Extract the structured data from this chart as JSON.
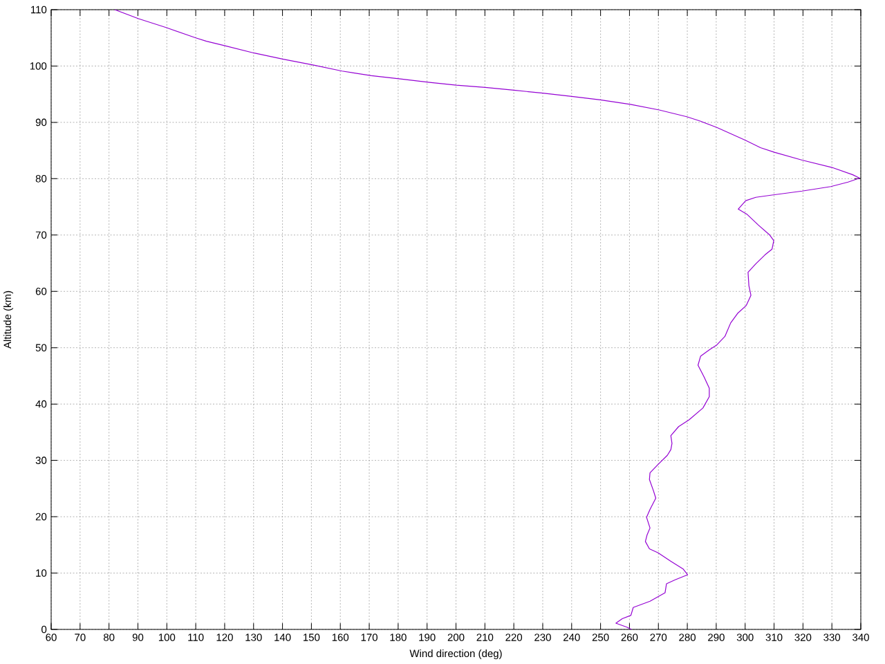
{
  "chart_data": {
    "type": "line",
    "xlabel": "Wind direction (deg)",
    "ylabel": "Altitude (km)",
    "color": "#9400d3",
    "x": [
      260.7,
      259.1,
      255.3,
      257.5,
      260.5,
      261.3,
      267.1,
      272.3,
      272.8,
      275.8,
      280.1,
      278.6,
      274.3,
      269.9,
      266.9,
      265.5,
      266.1,
      267.1,
      265.9,
      267.1,
      269.1,
      268.3,
      266.9,
      267.1,
      269.9,
      273.1,
      274.3,
      274.7,
      274.3,
      277.0,
      280.6,
      285.4,
      287.6,
      287.6,
      285.8,
      283.7,
      284.6,
      287.8,
      290.2,
      293.0,
      295.0,
      297.4,
      300.4,
      302.0,
      301.3,
      301.0,
      303.7,
      306.9,
      309.3,
      309.9,
      308.5,
      304.5,
      300.6,
      297.6,
      300.2,
      303.7,
      309.3,
      319.7,
      329.6,
      335.6,
      339.6,
      337.2,
      330.0,
      319.7,
      310.1,
      305.3,
      300.2,
      290.2,
      284.6,
      279.8,
      270.3,
      260.3,
      249.9,
      240.0,
      230.0,
      220.0,
      210.1,
      200.1,
      190.9,
      180.8,
      170.7,
      160.6,
      150.5,
      140.3,
      130.2,
      120.1,
      113.7,
      110.0,
      99.9,
      90.2,
      82.0
    ],
    "values": [
      0.0,
      0.4,
      1.1,
      1.9,
      2.5,
      3.9,
      5.0,
      6.5,
      8.1,
      8.8,
      9.7,
      10.7,
      12.1,
      13.6,
      14.3,
      15.6,
      16.8,
      18.0,
      19.9,
      21.3,
      23.3,
      24.6,
      26.6,
      27.8,
      29.3,
      30.9,
      31.9,
      33.0,
      34.4,
      36.0,
      37.2,
      39.3,
      41.3,
      42.8,
      44.8,
      46.9,
      48.5,
      49.7,
      50.5,
      52.0,
      54.4,
      56.1,
      57.5,
      59.3,
      61.0,
      63.4,
      64.9,
      66.5,
      67.5,
      69.0,
      70.0,
      71.8,
      73.7,
      74.6,
      76.1,
      76.7,
      77.1,
      77.8,
      78.6,
      79.4,
      80.1,
      80.7,
      82.0,
      83.3,
      84.7,
      85.5,
      86.8,
      89.1,
      90.2,
      91.0,
      92.2,
      93.2,
      94.0,
      94.6,
      95.2,
      95.7,
      96.2,
      96.6,
      97.1,
      97.7,
      98.3,
      99.1,
      100.2,
      101.2,
      102.3,
      103.6,
      104.4,
      105.0,
      106.8,
      108.4,
      110.0
    ],
    "xlim": [
      60,
      340
    ],
    "ylim": [
      0,
      110
    ],
    "xticks": [
      60,
      70,
      80,
      90,
      100,
      110,
      120,
      130,
      140,
      150,
      160,
      170,
      180,
      190,
      200,
      210,
      220,
      230,
      240,
      250,
      260,
      270,
      280,
      290,
      300,
      310,
      320,
      330,
      340
    ],
    "yticks": [
      0,
      10,
      20,
      30,
      40,
      50,
      60,
      70,
      80,
      90,
      100,
      110
    ],
    "grid": true
  }
}
